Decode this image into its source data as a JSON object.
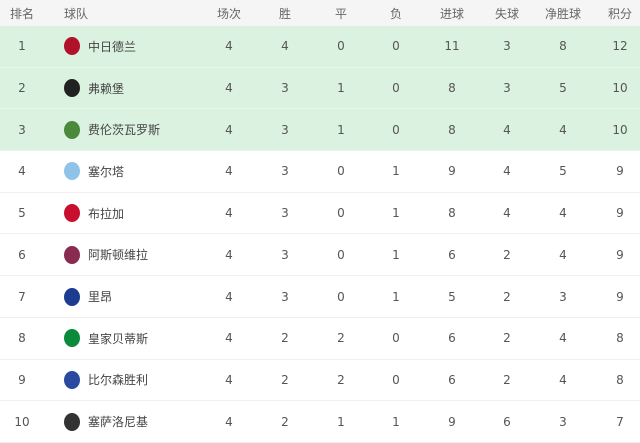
{
  "headers": [
    "排名",
    "球队",
    "场次",
    "胜",
    "平",
    "负",
    "进球",
    "失球",
    "净胜球",
    "积分"
  ],
  "highlight_color": "#dcf2e0",
  "rows": [
    {
      "rank": "1",
      "team": "中日德兰",
      "logo": "midtjylland-crest",
      "logo_color": "#b0112b",
      "p": "4",
      "w": "4",
      "d": "0",
      "l": "0",
      "gf": "11",
      "ga": "3",
      "gd": "8",
      "pts": "12"
    },
    {
      "rank": "2",
      "team": "弗赖堡",
      "logo": "freiburg-crest",
      "logo_color": "#222222",
      "p": "4",
      "w": "3",
      "d": "1",
      "l": "0",
      "gf": "8",
      "ga": "3",
      "gd": "5",
      "pts": "10"
    },
    {
      "rank": "3",
      "team": "费伦茨瓦罗斯",
      "logo": "ferencvaros-crest",
      "logo_color": "#4a8a3a",
      "p": "4",
      "w": "3",
      "d": "1",
      "l": "0",
      "gf": "8",
      "ga": "4",
      "gd": "4",
      "pts": "10"
    },
    {
      "rank": "4",
      "team": "塞尔塔",
      "logo": "celta-crest",
      "logo_color": "#8fc3e8",
      "p": "4",
      "w": "3",
      "d": "0",
      "l": "1",
      "gf": "9",
      "ga": "4",
      "gd": "5",
      "pts": "9"
    },
    {
      "rank": "5",
      "team": "布拉加",
      "logo": "braga-crest",
      "logo_color": "#c8102e",
      "p": "4",
      "w": "3",
      "d": "0",
      "l": "1",
      "gf": "8",
      "ga": "4",
      "gd": "4",
      "pts": "9"
    },
    {
      "rank": "6",
      "team": "阿斯顿维拉",
      "logo": "aston-villa-crest",
      "logo_color": "#8a2b52",
      "p": "4",
      "w": "3",
      "d": "0",
      "l": "1",
      "gf": "6",
      "ga": "2",
      "gd": "4",
      "pts": "9"
    },
    {
      "rank": "7",
      "team": "里昂",
      "logo": "lyon-crest",
      "logo_color": "#1d3c8f",
      "p": "4",
      "w": "3",
      "d": "0",
      "l": "1",
      "gf": "5",
      "ga": "2",
      "gd": "3",
      "pts": "9"
    },
    {
      "rank": "8",
      "team": "皇家贝蒂斯",
      "logo": "betis-crest",
      "logo_color": "#0b8a3c",
      "p": "4",
      "w": "2",
      "d": "2",
      "l": "0",
      "gf": "6",
      "ga": "2",
      "gd": "4",
      "pts": "8"
    },
    {
      "rank": "9",
      "team": "比尔森胜利",
      "logo": "plzen-crest",
      "logo_color": "#2a4aa0",
      "p": "4",
      "w": "2",
      "d": "2",
      "l": "0",
      "gf": "6",
      "ga": "2",
      "gd": "4",
      "pts": "8"
    },
    {
      "rank": "10",
      "team": "塞萨洛尼基",
      "logo": "paok-crest",
      "logo_color": "#333333",
      "p": "4",
      "w": "2",
      "d": "1",
      "l": "1",
      "gf": "9",
      "ga": "6",
      "gd": "3",
      "pts": "7"
    }
  ]
}
